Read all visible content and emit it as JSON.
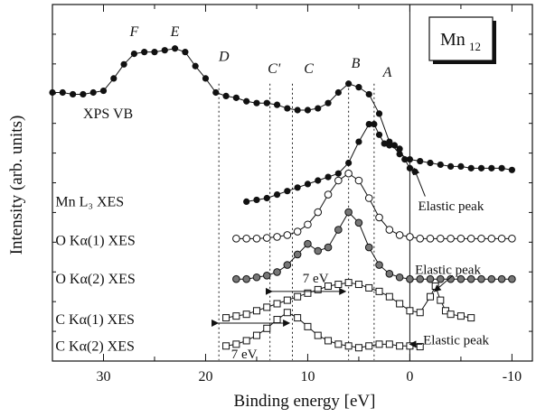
{
  "chart_data": {
    "type": "scatter",
    "title": "",
    "badge": {
      "main": "Mn",
      "sub": "12"
    },
    "xlabel": "Binding energy [eV]",
    "ylabel": "Intensity (arb. units)",
    "xlim": [
      35,
      -12
    ],
    "x_reversed": true,
    "x_ticks": [
      30,
      20,
      10,
      0,
      -10
    ],
    "ylim": [
      0,
      10
    ],
    "grid": false,
    "fermi_level_x": 0,
    "guide_lines": [
      {
        "name": "D",
        "x": 18.7
      },
      {
        "name": "C'",
        "x": 13.7
      },
      {
        "name": "C",
        "x": 11.5
      },
      {
        "name": "B",
        "x": 6.0
      },
      {
        "name": "A",
        "x": 3.5
      }
    ],
    "peak_labels": [
      {
        "text": "F",
        "x": 27.0,
        "y": 9.1
      },
      {
        "text": "E",
        "x": 23.0,
        "y": 9.1
      },
      {
        "text": "D",
        "x": 18.2,
        "y": 8.4
      },
      {
        "text": "C'",
        "x": 13.3,
        "y": 8.05
      },
      {
        "text": "C",
        "x": 9.9,
        "y": 8.05
      },
      {
        "text": "B",
        "x": 5.3,
        "y": 8.2
      },
      {
        "text": "A",
        "x": 2.2,
        "y": 7.95
      }
    ],
    "series": [
      {
        "name": "XPS VB",
        "marker": "filled-circle",
        "label_at": {
          "x": 32,
          "y": 6.9
        },
        "x": [
          35,
          34,
          33,
          32,
          31,
          30,
          29,
          28,
          27,
          26,
          25,
          24,
          23,
          22,
          21,
          20,
          19,
          18,
          17,
          16,
          15,
          14,
          13,
          12,
          11,
          10,
          9,
          8,
          7,
          6,
          5,
          4,
          3,
          2,
          1,
          0,
          -1,
          -2,
          -3,
          -4,
          -5,
          -6,
          -7,
          -8,
          -9,
          -10
        ],
        "values": [
          7.5,
          7.5,
          7.45,
          7.45,
          7.5,
          7.55,
          7.9,
          8.3,
          8.6,
          8.65,
          8.65,
          8.7,
          8.75,
          8.65,
          8.25,
          7.9,
          7.5,
          7.4,
          7.35,
          7.25,
          7.2,
          7.2,
          7.15,
          7.05,
          7.0,
          7.0,
          7.05,
          7.2,
          7.5,
          7.75,
          7.65,
          7.45,
          6.9,
          6.1,
          5.75,
          5.6,
          5.55,
          5.5,
          5.45,
          5.4,
          5.4,
          5.35,
          5.35,
          5.35,
          5.35,
          5.3
        ]
      },
      {
        "name": "Mn L₃ XES",
        "marker": "filled-circle",
        "label_at": {
          "x": 34.7,
          "y": 4.4
        },
        "x": [
          16,
          15,
          14,
          13,
          12,
          11,
          10,
          9,
          8,
          7,
          6,
          5,
          4,
          3.5,
          3,
          2.5,
          2,
          1.5,
          1,
          0.5,
          0,
          -0.5
        ],
        "values": [
          4.4,
          4.45,
          4.5,
          4.6,
          4.7,
          4.8,
          4.9,
          5.0,
          5.1,
          5.2,
          5.5,
          6.1,
          6.6,
          6.6,
          6.3,
          6.05,
          6.0,
          6.0,
          5.9,
          5.6,
          5.35,
          5.25
        ]
      },
      {
        "name": "O Kα(1) XES",
        "marker": "open-circle",
        "label_at": {
          "x": 34.7,
          "y": 3.3
        },
        "x": [
          17,
          16,
          15,
          14,
          13,
          12,
          11,
          10,
          9,
          8,
          7,
          6,
          5,
          4,
          3,
          2,
          1,
          0,
          -1,
          -2,
          -3,
          -4,
          -5,
          -6,
          -7,
          -8,
          -9,
          -10
        ],
        "values": [
          3.35,
          3.35,
          3.35,
          3.37,
          3.4,
          3.45,
          3.55,
          3.75,
          4.1,
          4.6,
          5.0,
          5.2,
          5.0,
          4.5,
          3.95,
          3.6,
          3.45,
          3.4,
          3.35,
          3.35,
          3.35,
          3.35,
          3.35,
          3.35,
          3.35,
          3.35,
          3.35,
          3.35
        ]
      },
      {
        "name": "O Kα(2) XES",
        "marker": "half-filled-circle",
        "label_at": {
          "x": 34.7,
          "y": 2.2
        },
        "x": [
          17,
          16,
          15,
          14,
          13,
          12,
          11,
          10,
          9,
          8,
          7,
          6,
          5,
          4,
          3,
          2,
          1,
          0,
          -1,
          -2,
          -3,
          -4,
          -5,
          -6,
          -7,
          -8,
          -9,
          -10
        ],
        "values": [
          2.2,
          2.2,
          2.25,
          2.3,
          2.4,
          2.6,
          2.9,
          3.2,
          3.0,
          3.1,
          3.6,
          4.1,
          3.8,
          3.1,
          2.6,
          2.35,
          2.25,
          2.2,
          2.2,
          2.2,
          2.2,
          2.2,
          2.2,
          2.2,
          2.2,
          2.2,
          2.2,
          2.2
        ]
      },
      {
        "name": "C Kα(1) XES",
        "marker": "open-square",
        "label_at": {
          "x": 34.7,
          "y": 1.05
        },
        "x": [
          18,
          17,
          16,
          15,
          14,
          13,
          12,
          11,
          10,
          9,
          8,
          7,
          6,
          5,
          4,
          3,
          2,
          1,
          0,
          -1,
          -2,
          -2.5,
          -3,
          -3.5,
          -4,
          -5,
          -6
        ],
        "values": [
          1.1,
          1.15,
          1.2,
          1.3,
          1.4,
          1.5,
          1.6,
          1.7,
          1.8,
          1.9,
          2.0,
          2.05,
          2.1,
          2.05,
          1.95,
          1.85,
          1.7,
          1.5,
          1.3,
          1.25,
          1.7,
          2.0,
          1.6,
          1.3,
          1.2,
          1.15,
          1.1
        ]
      },
      {
        "name": "C Kα(2) XES",
        "marker": "open-square",
        "label_at": {
          "x": 34.7,
          "y": 0.3
        },
        "x": [
          18,
          17,
          16,
          15,
          14,
          13,
          12,
          11,
          10,
          9,
          8,
          7,
          6,
          5,
          4,
          3,
          2,
          1,
          0,
          -1
        ],
        "values": [
          0.3,
          0.35,
          0.45,
          0.6,
          0.8,
          1.05,
          1.25,
          1.1,
          0.85,
          0.6,
          0.45,
          0.35,
          0.3,
          0.25,
          0.3,
          0.35,
          0.35,
          0.3,
          0.3,
          0.28
        ]
      }
    ],
    "annotations": [
      {
        "text": "Elastic peak",
        "x": -0.8,
        "y": 4.15,
        "arrow_from": [
          -1.5,
          4.55
        ],
        "arrow_to": [
          -0.4,
          5.35
        ]
      },
      {
        "text": "Elastic peak",
        "x": -0.5,
        "y": 2.35,
        "arrow_from": [
          -4.2,
          2.3
        ],
        "arrow_to": [
          -2.4,
          1.85
        ]
      },
      {
        "text": "Elastic peak",
        "x": -1.3,
        "y": 0.35,
        "arrow_from": [
          -1.2,
          0.35
        ],
        "arrow_to": [
          0.0,
          0.35
        ]
      },
      {
        "text": "7 eV",
        "x": 10.5,
        "y": 2.1
      },
      {
        "text": "7 eV",
        "x": 17.5,
        "y": -0.05
      }
    ],
    "span_arrows": [
      {
        "from": 13.5,
        "to": 6.3,
        "y": 1.85
      },
      {
        "from": 18.8,
        "to": 11.8,
        "y": 0.95
      }
    ]
  }
}
